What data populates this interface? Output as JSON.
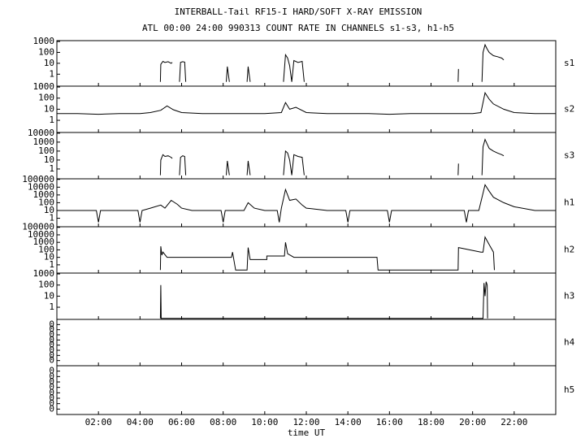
{
  "chart_data": {
    "type": "line",
    "title": "INTERBALL-Tail RF15-I HARD/SOFT X-RAY EMISSION",
    "subtitle": "ATL 00:00 24:00 990313  COUNT RATE IN CHANNELS s1-s3, h1-h5",
    "xlabel": "time UT",
    "xlim": [
      0,
      24
    ],
    "xticks": [
      {
        "value": 2,
        "label": "02:00"
      },
      {
        "value": 4,
        "label": "04:00"
      },
      {
        "value": 6,
        "label": "06:00"
      },
      {
        "value": 8,
        "label": "08:00"
      },
      {
        "value": 10,
        "label": "10:00"
      },
      {
        "value": 12,
        "label": "12:00"
      },
      {
        "value": 14,
        "label": "14:00"
      },
      {
        "value": 16,
        "label": "16:00"
      },
      {
        "value": 18,
        "label": "18:00"
      },
      {
        "value": 20,
        "label": "20:00"
      },
      {
        "value": 22,
        "label": "22:00"
      }
    ],
    "color": "#000000",
    "log_y": true,
    "panels": [
      {
        "name": "s1",
        "ylim": [
          0.08,
          1200
        ],
        "yticks": [
          1,
          10,
          100,
          1000
        ],
        "x": [
          4.98,
          5.0,
          5.1,
          5.2,
          5.35,
          5.5,
          5.55,
          5.7,
          5.9,
          5.95,
          6.05,
          6.15,
          6.2,
          7.0,
          8.15,
          8.2,
          8.3,
          8.7,
          9.15,
          9.2,
          9.3,
          10.0,
          10.9,
          11.0,
          11.1,
          11.2,
          11.3,
          11.4,
          11.6,
          11.8,
          11.9,
          15.0,
          19.3,
          19.32,
          20.0,
          20.45,
          20.5,
          20.6,
          20.7,
          20.8,
          21.0,
          21.2,
          21.4,
          21.5
        ],
        "values": [
          0.2,
          8,
          15,
          12,
          14,
          10,
          12,
          null,
          0.2,
          12,
          14,
          13,
          0.2,
          null,
          0.2,
          5,
          0.2,
          null,
          0.2,
          5,
          0.2,
          null,
          0.2,
          60,
          30,
          6,
          0.2,
          18,
          12,
          15,
          0.2,
          null,
          0.2,
          3,
          null,
          0.2,
          100,
          500,
          200,
          100,
          50,
          40,
          30,
          20
        ]
      },
      {
        "name": "s2",
        "ylim": [
          0.08,
          1200
        ],
        "yticks": [
          1,
          10,
          100,
          1000
        ],
        "x": [
          0,
          1,
          2,
          3,
          4,
          4.5,
          5,
          5.3,
          5.6,
          6,
          7,
          8,
          9,
          10,
          10.8,
          11,
          11.2,
          11.5,
          12,
          13,
          14,
          15,
          16,
          17,
          18,
          19,
          20,
          20.4,
          20.6,
          20.8,
          21,
          21.5,
          22,
          23,
          24
        ],
        "values": [
          4,
          4,
          3.5,
          4,
          4,
          5,
          8,
          20,
          9,
          5,
          4,
          4,
          4,
          4,
          5,
          40,
          10,
          15,
          5,
          4,
          4,
          4,
          3.5,
          4,
          4,
          4,
          4,
          5,
          300,
          80,
          30,
          10,
          5,
          4,
          4
        ]
      },
      {
        "name": "s3",
        "ylim": [
          0.08,
          12000
        ],
        "yticks": [
          1,
          10,
          100,
          1000,
          10000
        ],
        "x": [
          4.98,
          5.0,
          5.1,
          5.2,
          5.35,
          5.5,
          5.55,
          5.7,
          5.9,
          5.95,
          6.05,
          6.15,
          6.2,
          7.0,
          8.15,
          8.2,
          8.3,
          8.7,
          9.15,
          9.2,
          9.3,
          10.0,
          10.9,
          11.0,
          11.1,
          11.2,
          11.3,
          11.4,
          11.6,
          11.8,
          11.9,
          15.0,
          19.3,
          19.32,
          20.0,
          20.45,
          20.5,
          20.6,
          20.7,
          20.8,
          21.0,
          21.2,
          21.4,
          21.5
        ],
        "values": [
          0.2,
          10,
          40,
          25,
          30,
          20,
          15,
          null,
          0.2,
          20,
          30,
          25,
          0.2,
          null,
          0.2,
          8,
          0.2,
          null,
          0.2,
          8,
          0.2,
          null,
          0.2,
          100,
          60,
          10,
          0.2,
          40,
          25,
          20,
          0.2,
          null,
          0.2,
          4,
          null,
          0.2,
          300,
          2000,
          600,
          200,
          100,
          60,
          40,
          30
        ]
      },
      {
        "name": "h1",
        "ylim": [
          0.08,
          120000
        ],
        "yticks": [
          1,
          10,
          100,
          1000,
          10000,
          100000
        ],
        "x": [
          0,
          1,
          1.9,
          2.0,
          2.1,
          3,
          3.9,
          4.0,
          4.1,
          4.5,
          5,
          5.2,
          5.5,
          5.8,
          6,
          6.5,
          7,
          7.9,
          8.0,
          8.1,
          9,
          9.2,
          9.5,
          10,
          10.6,
          10.7,
          10.8,
          11,
          11.2,
          11.5,
          11.8,
          12,
          13,
          13.9,
          14.0,
          14.1,
          15,
          15.9,
          16.0,
          16.1,
          17,
          18,
          19,
          19.6,
          19.7,
          19.8,
          20.3,
          20.6,
          20.8,
          21,
          21.5,
          22,
          23,
          24
        ],
        "values": [
          10,
          10,
          10,
          0.3,
          10,
          10,
          10,
          0.3,
          10,
          20,
          50,
          20,
          200,
          60,
          20,
          10,
          10,
          10,
          0.3,
          10,
          10,
          100,
          20,
          10,
          10,
          0.3,
          20,
          5000,
          200,
          300,
          50,
          20,
          10,
          10,
          0.3,
          10,
          10,
          10,
          0.3,
          10,
          10,
          10,
          10,
          10,
          0.3,
          10,
          10,
          20000,
          3000,
          500,
          100,
          30,
          10,
          10
        ]
      },
      {
        "name": "h2",
        "ylim": [
          0.08,
          120000
        ],
        "yticks": [
          1,
          10,
          100,
          1000,
          10000,
          100000
        ],
        "x": [
          4.98,
          5.0,
          5.05,
          5.1,
          5.3,
          8.4,
          8.45,
          8.6,
          9.15,
          9.2,
          9.3,
          10.1,
          10.1,
          10.95,
          11.0,
          11.1,
          11.4,
          15.4,
          15.45,
          19.3,
          19.32,
          20.4,
          20.5,
          20.6,
          20.8,
          21.0,
          21.05
        ],
        "values": [
          0.2,
          300,
          20,
          50,
          10,
          10,
          50,
          0.2,
          0.2,
          200,
          5,
          5,
          15,
          15,
          1000,
          30,
          10,
          10,
          0.2,
          0.2,
          200,
          50,
          50,
          5000,
          500,
          50,
          0.2
        ]
      },
      {
        "name": "h3",
        "ylim": [
          0.08,
          1200
        ],
        "yticks": [
          1,
          10,
          100,
          1000
        ],
        "x": [
          4.98,
          5.0,
          5.02,
          20.5,
          20.55,
          20.6,
          20.65,
          20.7,
          20.72
        ],
        "values": [
          0.1,
          100,
          0.1,
          0.1,
          150,
          10,
          200,
          100,
          0.1
        ]
      },
      {
        "name": "h4",
        "ylim": [
          1e-09,
          1
        ],
        "yticks": [
          {
            "value": 1e-08,
            "label": "0"
          },
          {
            "value": 1e-07,
            "label": "0"
          },
          {
            "value": 1e-06,
            "label": "0"
          },
          {
            "value": 1e-05,
            "label": "0"
          },
          {
            "value": 0.0001,
            "label": "0"
          },
          {
            "value": 0.001,
            "label": "0"
          },
          {
            "value": 0.01,
            "label": "0"
          },
          {
            "value": 0.1,
            "label": "0"
          }
        ]
      },
      {
        "name": "h5",
        "ylim": [
          1e-09,
          1
        ],
        "yticks": [
          {
            "value": 1e-08,
            "label": "0"
          },
          {
            "value": 1e-07,
            "label": "0"
          },
          {
            "value": 1e-06,
            "label": "0"
          },
          {
            "value": 1e-05,
            "label": "0"
          },
          {
            "value": 0.0001,
            "label": "0"
          },
          {
            "value": 0.001,
            "label": "0"
          },
          {
            "value": 0.01,
            "label": "0"
          },
          {
            "value": 0.1,
            "label": "0"
          }
        ]
      }
    ]
  }
}
